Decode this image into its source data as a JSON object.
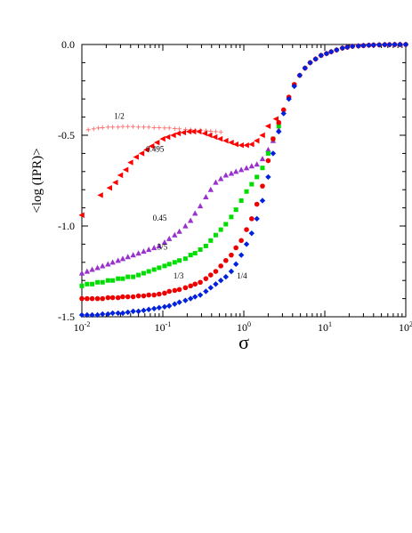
{
  "chart_data": {
    "type": "scatter",
    "xlabel": "σ",
    "ylabel": "<log (IPR)>",
    "x_scale": "log",
    "xlim": [
      0.01,
      100
    ],
    "ylim": [
      -1.5,
      0.0
    ],
    "grid": false,
    "x_ticks": [
      {
        "value": 0.01,
        "base": "10",
        "exp": "-2"
      },
      {
        "value": 0.1,
        "base": "10",
        "exp": "-1"
      },
      {
        "value": 1,
        "base": "10",
        "exp": "0"
      },
      {
        "value": 10,
        "base": "10",
        "exp": "1"
      },
      {
        "value": 100,
        "base": "10",
        "exp": "2"
      }
    ],
    "y_ticks": [
      {
        "value": 0.0,
        "label": "0.0"
      },
      {
        "value": -0.5,
        "label": "-0.5"
      },
      {
        "value": -1.0,
        "label": "-1.0"
      },
      {
        "value": -1.5,
        "label": "-1.5"
      }
    ],
    "series": [
      {
        "marker": "plus",
        "color": "#ff6a6a",
        "x": [
          0.012,
          0.014,
          0.016,
          0.018,
          0.021,
          0.024,
          0.028,
          0.032,
          0.037,
          0.043,
          0.05,
          0.058,
          0.067,
          0.078,
          0.09,
          0.105,
          0.12,
          0.14,
          0.16,
          0.19,
          0.22,
          0.25,
          0.29,
          0.34,
          0.39,
          0.45,
          0.52
        ],
        "y": [
          -0.47,
          -0.465,
          -0.46,
          -0.458,
          -0.455,
          -0.455,
          -0.455,
          -0.452,
          -0.452,
          -0.452,
          -0.455,
          -0.455,
          -0.455,
          -0.458,
          -0.458,
          -0.46,
          -0.46,
          -0.463,
          -0.465,
          -0.468,
          -0.47,
          -0.472,
          -0.472,
          -0.475,
          -0.478,
          -0.48,
          -0.482
        ]
      },
      {
        "marker": "triangle-left",
        "color": "#ff0000",
        "x": [
          0.01,
          0.017,
          0.022,
          0.026,
          0.03,
          0.035,
          0.04,
          0.047,
          0.055,
          0.063,
          0.073,
          0.085,
          0.1,
          0.115,
          0.135,
          0.155,
          0.18,
          0.21,
          0.24,
          0.28,
          0.33,
          0.38,
          0.44,
          0.51,
          0.6,
          0.7,
          0.8,
          0.93,
          1.08,
          1.25,
          1.45,
          1.7,
          2.0,
          2.5
        ],
        "y": [
          -0.94,
          -0.83,
          -0.79,
          -0.76,
          -0.72,
          -0.69,
          -0.65,
          -0.62,
          -0.6,
          -0.58,
          -0.56,
          -0.54,
          -0.52,
          -0.51,
          -0.5,
          -0.49,
          -0.485,
          -0.48,
          -0.48,
          -0.48,
          -0.49,
          -0.5,
          -0.51,
          -0.52,
          -0.53,
          -0.54,
          -0.55,
          -0.555,
          -0.555,
          -0.55,
          -0.53,
          -0.5,
          -0.45,
          -0.41
        ]
      },
      {
        "marker": "triangle-up",
        "color": "#9932cc",
        "x": [
          0.01,
          0.0116,
          0.0134,
          0.0156,
          0.018,
          0.021,
          0.024,
          0.028,
          0.032,
          0.037,
          0.043,
          0.05,
          0.058,
          0.067,
          0.078,
          0.09,
          0.105,
          0.12,
          0.14,
          0.16,
          0.19,
          0.22,
          0.25,
          0.29,
          0.34,
          0.39,
          0.45,
          0.52,
          0.6,
          0.7,
          0.8,
          0.93,
          1.08,
          1.25,
          1.45,
          1.7,
          2.0,
          2.3,
          2.7
        ],
        "y": [
          -1.26,
          -1.25,
          -1.24,
          -1.23,
          -1.22,
          -1.21,
          -1.2,
          -1.19,
          -1.18,
          -1.17,
          -1.16,
          -1.15,
          -1.14,
          -1.13,
          -1.12,
          -1.11,
          -1.09,
          -1.07,
          -1.05,
          -1.03,
          -1.0,
          -0.97,
          -0.93,
          -0.89,
          -0.84,
          -0.8,
          -0.76,
          -0.74,
          -0.72,
          -0.71,
          -0.7,
          -0.69,
          -0.68,
          -0.67,
          -0.66,
          -0.63,
          -0.58,
          -0.53,
          -0.47
        ]
      },
      {
        "marker": "square",
        "color": "#00dd00",
        "x": [
          0.01,
          0.0116,
          0.0134,
          0.0156,
          0.018,
          0.021,
          0.024,
          0.028,
          0.032,
          0.037,
          0.043,
          0.05,
          0.058,
          0.067,
          0.078,
          0.09,
          0.105,
          0.12,
          0.14,
          0.16,
          0.19,
          0.22,
          0.25,
          0.29,
          0.34,
          0.39,
          0.45,
          0.52,
          0.6,
          0.7,
          0.8,
          0.93,
          1.08,
          1.25,
          1.45,
          1.7,
          2.0,
          2.3,
          2.7
        ],
        "y": [
          -1.33,
          -1.32,
          -1.32,
          -1.31,
          -1.31,
          -1.3,
          -1.3,
          -1.29,
          -1.29,
          -1.28,
          -1.28,
          -1.27,
          -1.26,
          -1.25,
          -1.24,
          -1.23,
          -1.22,
          -1.21,
          -1.2,
          -1.19,
          -1.18,
          -1.16,
          -1.15,
          -1.13,
          -1.11,
          -1.08,
          -1.05,
          -1.02,
          -0.99,
          -0.95,
          -0.91,
          -0.86,
          -0.81,
          -0.77,
          -0.73,
          -0.68,
          -0.6,
          -0.52,
          -0.45
        ]
      },
      {
        "marker": "circle",
        "color": "#ee0000",
        "x": [
          0.01,
          0.0116,
          0.0134,
          0.0156,
          0.018,
          0.021,
          0.024,
          0.028,
          0.032,
          0.037,
          0.043,
          0.05,
          0.058,
          0.067,
          0.078,
          0.09,
          0.105,
          0.12,
          0.14,
          0.16,
          0.19,
          0.22,
          0.25,
          0.29,
          0.34,
          0.39,
          0.45,
          0.52,
          0.6,
          0.7,
          0.8,
          0.93,
          1.08,
          1.25,
          1.45,
          1.7,
          2.0,
          2.3,
          2.7,
          3.1,
          3.6,
          4.2,
          4.9,
          5.7,
          6.6,
          7.7,
          9.0,
          10.5,
          12,
          14,
          16.5,
          19,
          22,
          26,
          30,
          35,
          40,
          47,
          55,
          63,
          73,
          85,
          100
        ],
        "y": [
          -1.4,
          -1.4,
          -1.4,
          -1.4,
          -1.4,
          -1.395,
          -1.395,
          -1.395,
          -1.39,
          -1.39,
          -1.39,
          -1.385,
          -1.385,
          -1.38,
          -1.38,
          -1.375,
          -1.37,
          -1.36,
          -1.355,
          -1.35,
          -1.34,
          -1.33,
          -1.32,
          -1.31,
          -1.29,
          -1.27,
          -1.25,
          -1.22,
          -1.19,
          -1.16,
          -1.12,
          -1.08,
          -1.02,
          -0.96,
          -0.88,
          -0.78,
          -0.64,
          -0.52,
          -0.43,
          -0.36,
          -0.29,
          -0.22,
          -0.17,
          -0.13,
          -0.1,
          -0.08,
          -0.06,
          -0.05,
          -0.04,
          -0.03,
          -0.02,
          -0.015,
          -0.01,
          -0.008,
          -0.006,
          -0.004,
          -0.003,
          -0.002,
          -0.001,
          -0.001,
          0,
          0,
          0
        ]
      },
      {
        "marker": "diamond",
        "color": "#0022dd",
        "x": [
          0.01,
          0.0116,
          0.0134,
          0.0156,
          0.018,
          0.021,
          0.024,
          0.028,
          0.032,
          0.037,
          0.043,
          0.05,
          0.058,
          0.067,
          0.078,
          0.09,
          0.105,
          0.12,
          0.14,
          0.16,
          0.19,
          0.22,
          0.25,
          0.29,
          0.34,
          0.39,
          0.45,
          0.52,
          0.6,
          0.7,
          0.8,
          0.93,
          1.08,
          1.25,
          1.45,
          1.7,
          2.0,
          2.3,
          2.7,
          3.1,
          3.6,
          4.2,
          4.9,
          5.7,
          6.6,
          7.7,
          9.0,
          10.5,
          12,
          14,
          16.5,
          19,
          22,
          26,
          30,
          35,
          40,
          47,
          55,
          63,
          73,
          85,
          100
        ],
        "y": [
          -1.49,
          -1.49,
          -1.49,
          -1.49,
          -1.485,
          -1.485,
          -1.48,
          -1.48,
          -1.48,
          -1.475,
          -1.47,
          -1.47,
          -1.465,
          -1.46,
          -1.455,
          -1.45,
          -1.445,
          -1.44,
          -1.43,
          -1.42,
          -1.41,
          -1.4,
          -1.39,
          -1.38,
          -1.36,
          -1.34,
          -1.32,
          -1.3,
          -1.28,
          -1.25,
          -1.21,
          -1.16,
          -1.1,
          -1.04,
          -0.96,
          -0.86,
          -0.73,
          -0.6,
          -0.48,
          -0.38,
          -0.3,
          -0.23,
          -0.17,
          -0.13,
          -0.1,
          -0.08,
          -0.06,
          -0.05,
          -0.04,
          -0.03,
          -0.02,
          -0.015,
          -0.01,
          -0.008,
          -0.006,
          -0.004,
          -0.003,
          -0.002,
          -0.001,
          -0.001,
          0,
          0,
          0
        ]
      }
    ],
    "annotations": [
      {
        "text": "1/2",
        "x": 0.025,
        "y": -0.41
      },
      {
        "text": "0.495",
        "x": 0.062,
        "y": -0.59
      },
      {
        "text": "0.45",
        "x": 0.075,
        "y": -0.97
      },
      {
        "text": "3/5",
        "x": 0.085,
        "y": -1.13
      },
      {
        "text": "1/3",
        "x": 0.135,
        "y": -1.29
      },
      {
        "text": "1/4",
        "x": 0.82,
        "y": -1.29
      }
    ]
  }
}
